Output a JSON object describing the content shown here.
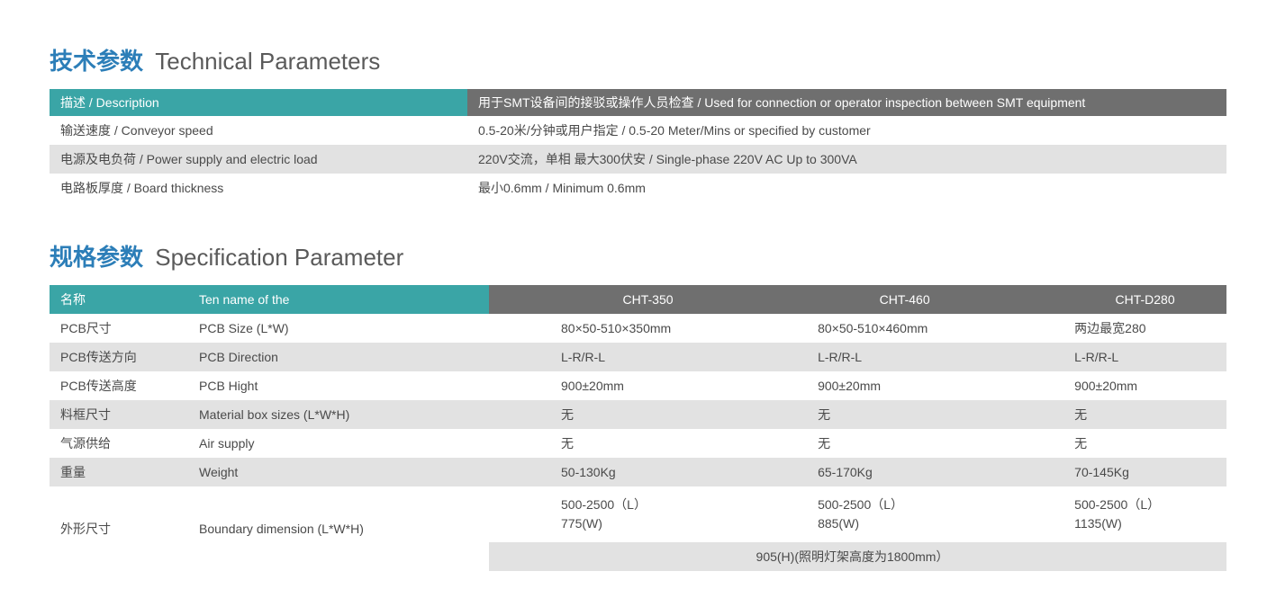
{
  "colors": {
    "title_accent": "#2c7eb8",
    "title_muted": "#5a5a5a",
    "header_teal": "#3aa5a6",
    "header_gray": "#6f6f6f",
    "row_light": "#ffffff",
    "row_gray": "#e2e2e2",
    "body_text": "#4a4a4a"
  },
  "tech": {
    "title_zh": "技术参数",
    "title_en": "Technical Parameters",
    "rows": [
      {
        "label": "描述 / Description",
        "value": "用于SMT设备间的接驳或操作人员检查 / Used for connection or operator inspection between SMT equipment"
      },
      {
        "label": "输送速度 / Conveyor speed",
        "value": "0.5-20米/分钟或用户指定 / 0.5-20 Meter/Mins or specified by customer"
      },
      {
        "label": "电源及电负荷 / Power supply and electric load",
        "value": "220V交流，单相 最大300伏安 / Single-phase 220V AC Up to 300VA"
      },
      {
        "label": "电路板厚度 / Board thickness",
        "value": "最小0.6mm / Minimum 0.6mm"
      }
    ]
  },
  "spec": {
    "title_zh": "规格参数",
    "title_en": "Specification Parameter",
    "header": {
      "c0": "名称",
      "c1": "Ten name of the",
      "models": [
        "CHT-350",
        "CHT-460",
        "CHT-D280"
      ]
    },
    "rows": [
      {
        "zh": "PCB尺寸",
        "en": "PCB Size (L*W)",
        "v": [
          "80×50-510×350mm",
          "80×50-510×460mm",
          "两边最宽280"
        ]
      },
      {
        "zh": "PCB传送方向",
        "en": "PCB Direction",
        "v": [
          "L-R/R-L",
          "L-R/R-L",
          "L-R/R-L"
        ]
      },
      {
        "zh": "PCB传送高度",
        "en": "PCB Hight",
        "v": [
          "900±20mm",
          "900±20mm",
          "900±20mm"
        ]
      },
      {
        "zh": "料框尺寸",
        "en": "Material box sizes (L*W*H)",
        "v": [
          "无",
          "无",
          "无"
        ]
      },
      {
        "zh": "气源供给",
        "en": "Air supply",
        "v": [
          "无",
          "无",
          "无"
        ]
      },
      {
        "zh": "重量",
        "en": "Weight",
        "v": [
          "50-130Kg",
          "65-170Kg",
          "70-145Kg"
        ]
      }
    ],
    "boundary": {
      "zh": "外形尺寸",
      "en": "Boundary dimension (L*W*H)",
      "v": [
        "500-2500（L）\n775(W)",
        "500-2500（L）\n885(W)",
        "500-2500（L）\n1135(W)"
      ],
      "merged": "905(H)(照明灯架高度为1800mm）"
    }
  }
}
